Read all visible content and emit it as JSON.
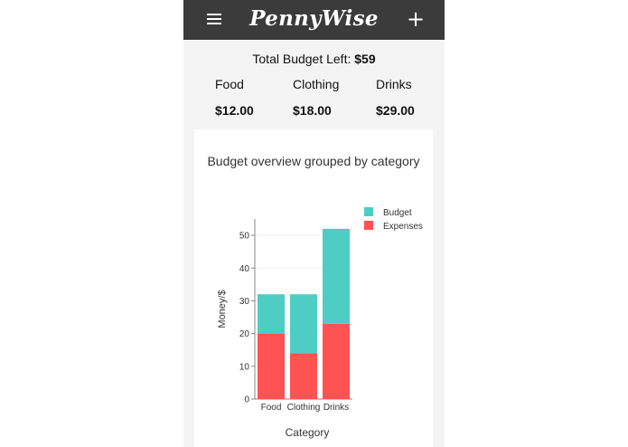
{
  "app": {
    "title": "PennyWise"
  },
  "icons": {
    "menu": "menu-icon",
    "add": "plus-icon"
  },
  "summary": {
    "total_label": "Total Budget Left:",
    "total_value": "$59"
  },
  "categories": [
    {
      "name": "Food",
      "amount": "$12.00"
    },
    {
      "name": "Clothing",
      "amount": "$18.00"
    },
    {
      "name": "Drinks",
      "amount": "$29.00"
    }
  ],
  "chart_card": {
    "title": "Budget overview grouped by category"
  },
  "chart_data": {
    "type": "bar",
    "stacked": true,
    "categories": [
      "Food",
      "Clothing",
      "Drinks"
    ],
    "series": [
      {
        "name": "Expenses",
        "values": [
          20,
          14,
          23
        ],
        "color": "#ff5252"
      },
      {
        "name": "Budget",
        "values": [
          12,
          18,
          29
        ],
        "color": "#4ecdc4"
      }
    ],
    "xlabel": "Category",
    "ylabel": "Money/$",
    "ylim": [
      0,
      55
    ],
    "yticks": [
      0,
      10,
      20,
      30,
      40,
      50
    ],
    "legend": "top-right",
    "grid": true
  }
}
